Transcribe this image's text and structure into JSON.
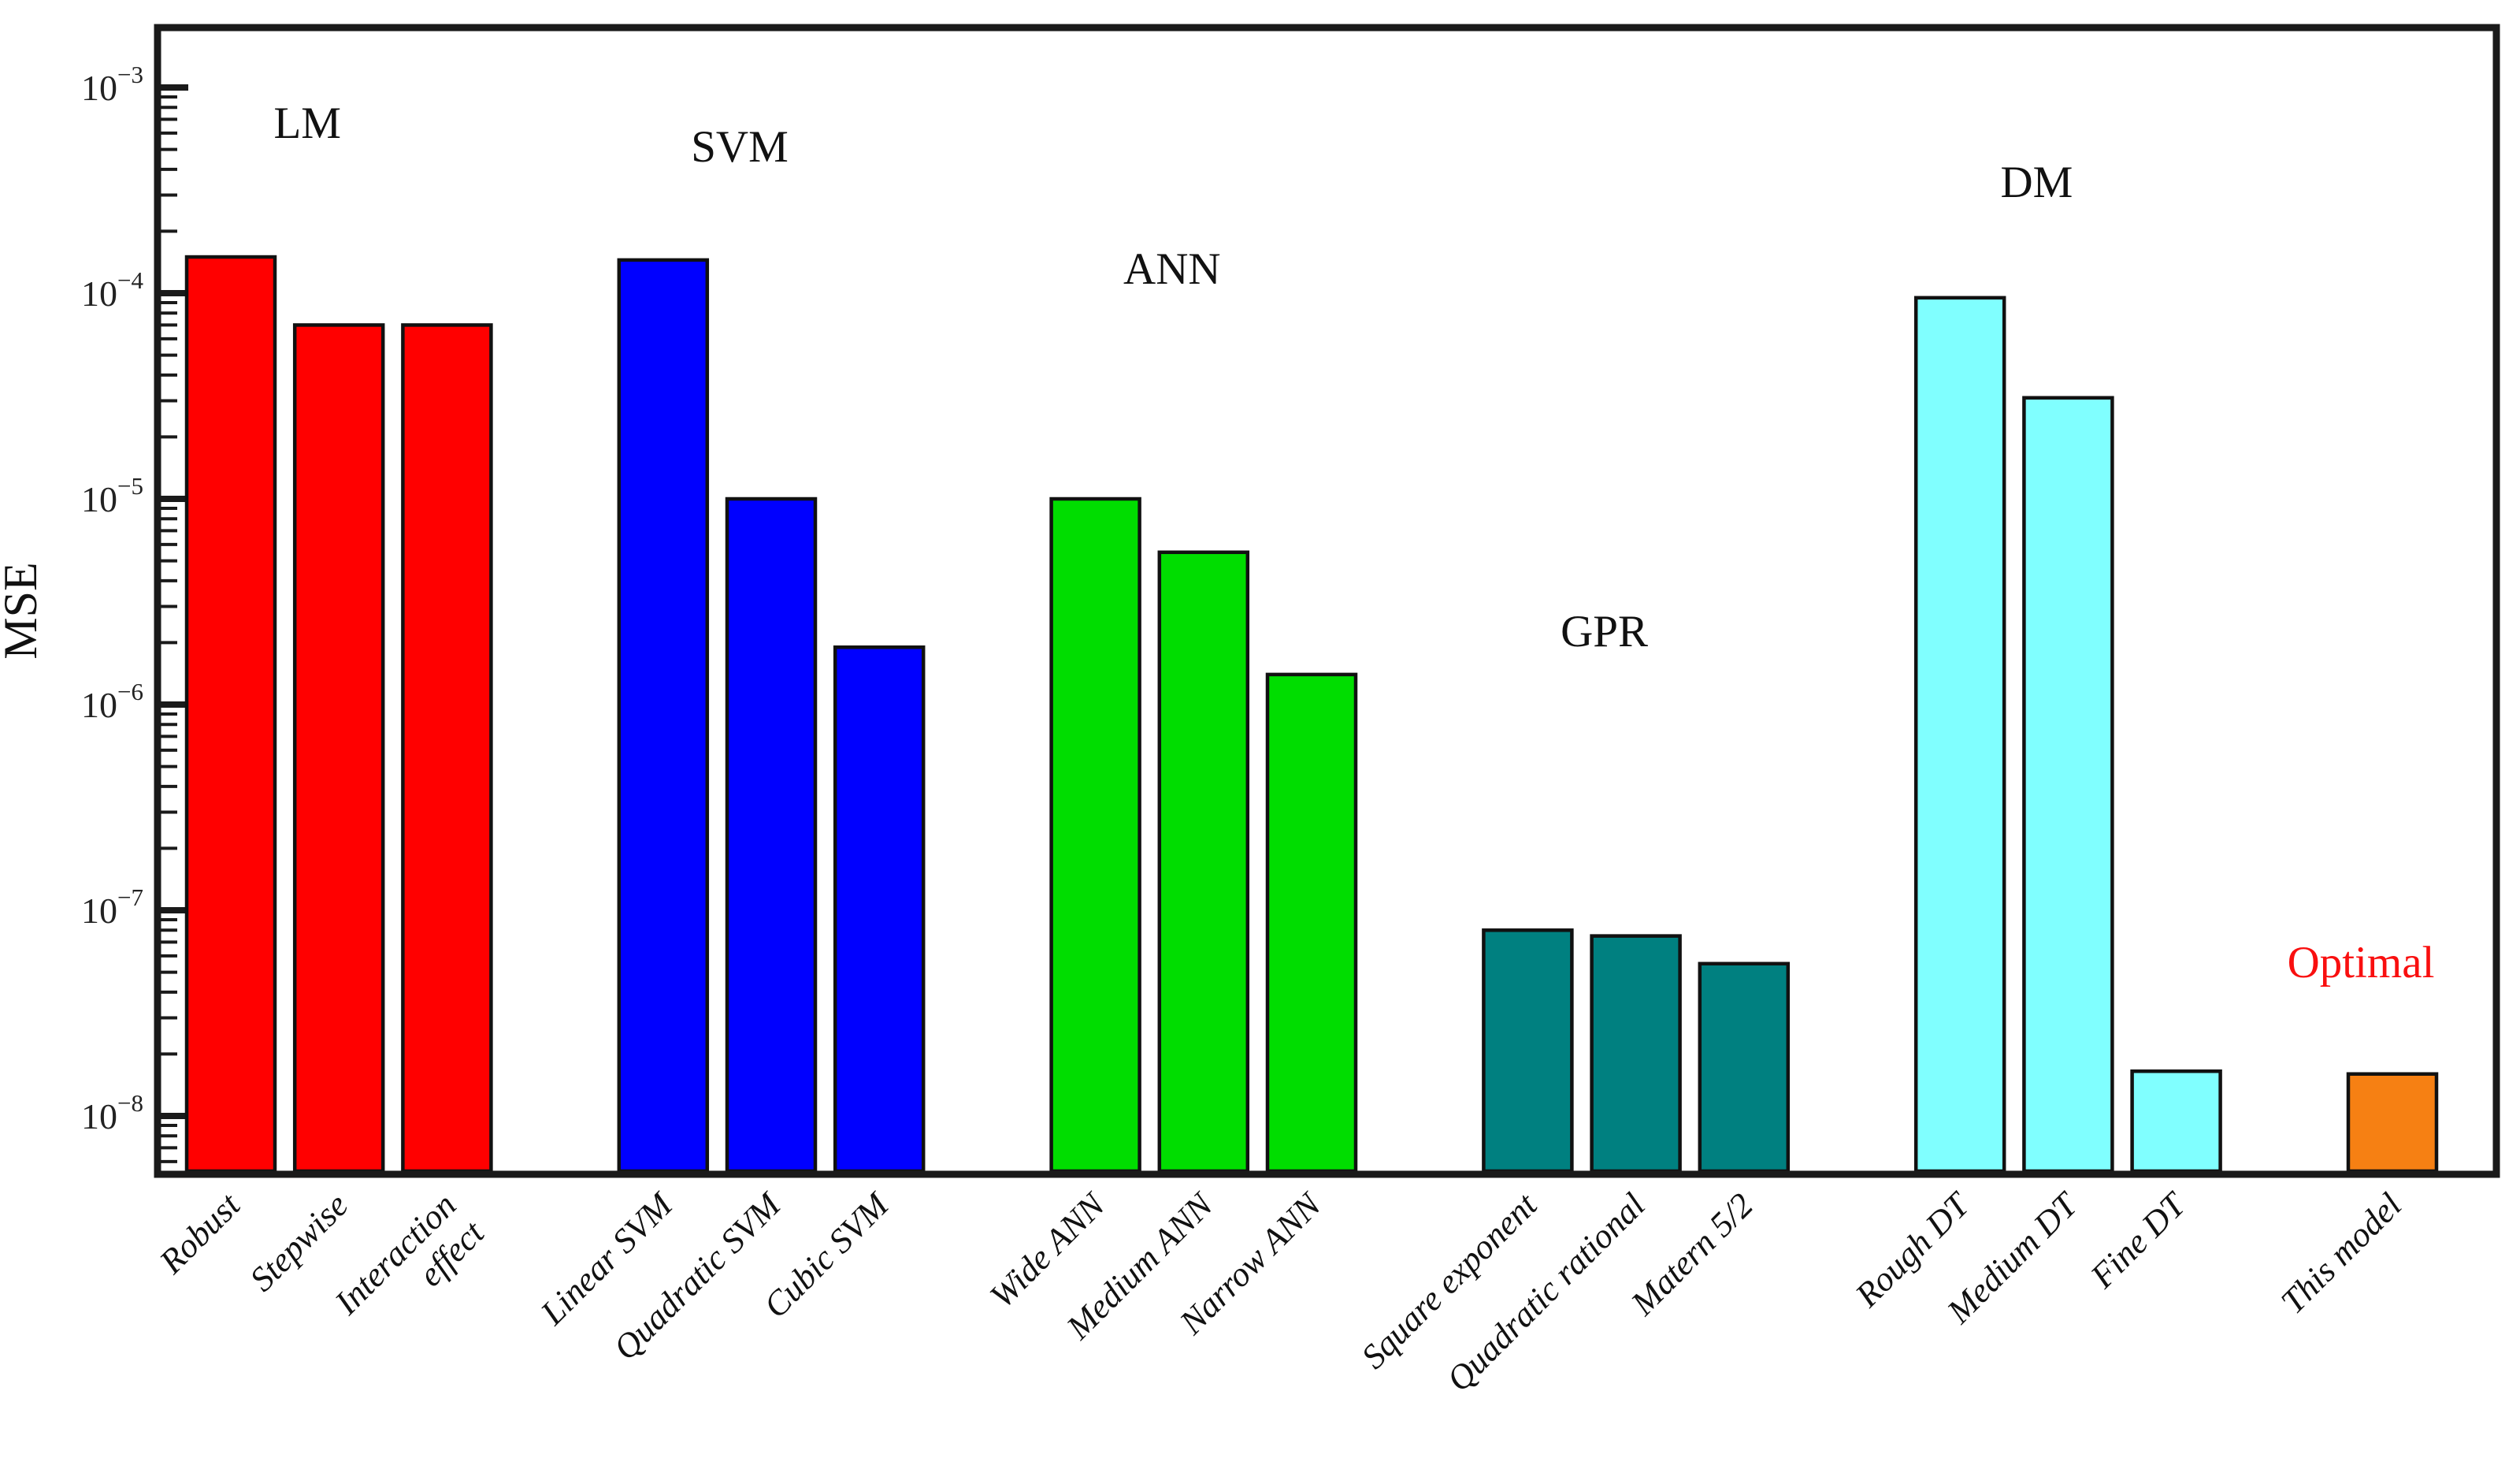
{
  "figure": {
    "ylabel": "MSE",
    "y_tick_exponents": [
      "−3",
      "−4",
      "−5",
      "−6",
      "−7",
      "−8"
    ],
    "optimal_annotation": {
      "text": "Optimal",
      "color": "#f90f0f"
    }
  },
  "chart_data": {
    "type": "bar",
    "title": "",
    "xlabel": "",
    "ylabel": "MSE",
    "yscale": "log",
    "ylim": [
      5e-09,
      0.002
    ],
    "grid": false,
    "legend_position": "none",
    "axis_color": "#1a1a1a",
    "groups": [
      {
        "label": "LM",
        "label_color": "#111111",
        "color": "#ff0000",
        "bars": [
          {
            "category": "Robust",
            "value": 0.00015
          },
          {
            "category": "Stepwise",
            "value": 7e-05
          },
          {
            "category": "Interaction\neffect",
            "value": 7e-05
          }
        ]
      },
      {
        "label": "SVM",
        "label_color": "#111111",
        "color": "#0000ff",
        "bars": [
          {
            "category": "Linear SVM",
            "value": 0.000145
          },
          {
            "category": "Quadratic SVM",
            "value": 1e-05
          },
          {
            "category": "Cubic SVM",
            "value": 1.9e-06
          }
        ]
      },
      {
        "label": "ANN",
        "label_color": "#111111",
        "color": "#00dd00",
        "bars": [
          {
            "category": "Wide ANN",
            "value": 1e-05
          },
          {
            "category": "Medium  ANN",
            "value": 5.5e-06
          },
          {
            "category": "Narrow ANN",
            "value": 1.4e-06
          }
        ]
      },
      {
        "label": "GPR",
        "label_color": "#111111",
        "color": "#008080",
        "bars": [
          {
            "category": "Square exponent",
            "value": 8e-08
          },
          {
            "category": "Quadratic rational",
            "value": 7.5e-08
          },
          {
            "category": "Matern 5/2",
            "value": 5.5e-08
          }
        ]
      },
      {
        "label": "DM",
        "label_color": "#111111",
        "color": "#80ffff",
        "bars": [
          {
            "category": "Rough DT",
            "value": 9.5e-05
          },
          {
            "category": "Medium  DT",
            "value": 3.1e-05
          },
          {
            "category": "Fine DT",
            "value": 1.65e-08
          }
        ]
      },
      {
        "label": "Optimal",
        "label_color": "#f90f0f",
        "color": "#f68013",
        "bars": [
          {
            "category": "This model",
            "value": 1.6e-08
          }
        ]
      }
    ]
  }
}
